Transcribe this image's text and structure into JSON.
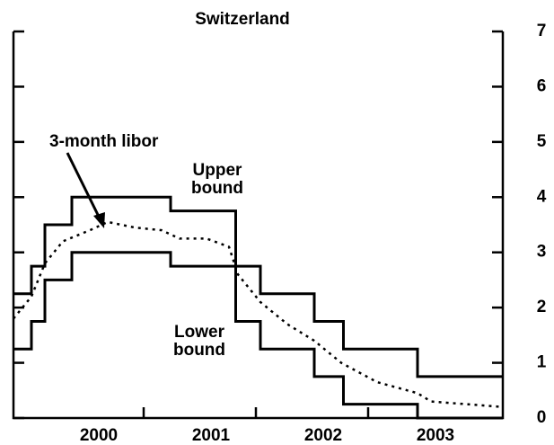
{
  "chart_data": {
    "type": "step-line",
    "title": "Switzerland",
    "xlim": [
      1999.84,
      2004.2
    ],
    "xticks": [
      {
        "value": 2000.6,
        "label": "2000"
      },
      {
        "value": 2001.6,
        "label": "2001"
      },
      {
        "value": 2002.6,
        "label": "2002"
      },
      {
        "value": 2003.6,
        "label": "2003"
      }
    ],
    "xminor_ticks": [
      2001,
      2002,
      2003
    ],
    "ylim": [
      0,
      7
    ],
    "yticks": [
      0,
      1,
      2,
      3,
      4,
      5,
      6,
      7
    ],
    "series": [
      {
        "name": "Upper bound",
        "color": "#000",
        "style": "step",
        "x": [
          1999.84,
          2000.0,
          2000.12,
          2000.36,
          2001.24,
          2001.82,
          2002.04,
          2002.52,
          2002.78,
          2003.44,
          2004.2
        ],
        "values": [
          2.25,
          2.75,
          3.5,
          4.0,
          3.75,
          2.75,
          2.25,
          1.75,
          1.25,
          0.75,
          0.75
        ]
      },
      {
        "name": "Lower bound",
        "color": "#000",
        "style": "step",
        "x": [
          1999.84,
          2000.0,
          2000.12,
          2000.36,
          2001.24,
          2001.82,
          2002.04,
          2002.52,
          2002.78,
          2003.44,
          2004.2
        ],
        "values": [
          1.25,
          1.75,
          2.5,
          3.0,
          2.75,
          1.75,
          1.25,
          0.75,
          0.25,
          0,
          0
        ]
      },
      {
        "name": "3-month libor",
        "color": "#000",
        "style": "dotted",
        "x": [
          1999.84,
          2000.0,
          2000.12,
          2000.28,
          2000.52,
          2000.68,
          2000.92,
          2001.16,
          2001.32,
          2001.56,
          2001.76,
          2001.84,
          2002.04,
          2002.28,
          2002.52,
          2002.76,
          2003.08,
          2003.44,
          2003.56,
          2004.2
        ],
        "values": [
          1.8,
          2.2,
          2.8,
          3.2,
          3.4,
          3.55,
          3.45,
          3.4,
          3.25,
          3.25,
          3.1,
          2.6,
          2.1,
          1.7,
          1.4,
          1.0,
          0.65,
          0.45,
          0.3,
          0.2
        ]
      }
    ],
    "annotations": [
      {
        "lines": [
          "3-month libor"
        ]
      },
      {
        "lines": [
          "Upper",
          "bound"
        ]
      },
      {
        "lines": [
          "Lower",
          "bound"
        ]
      }
    ]
  }
}
